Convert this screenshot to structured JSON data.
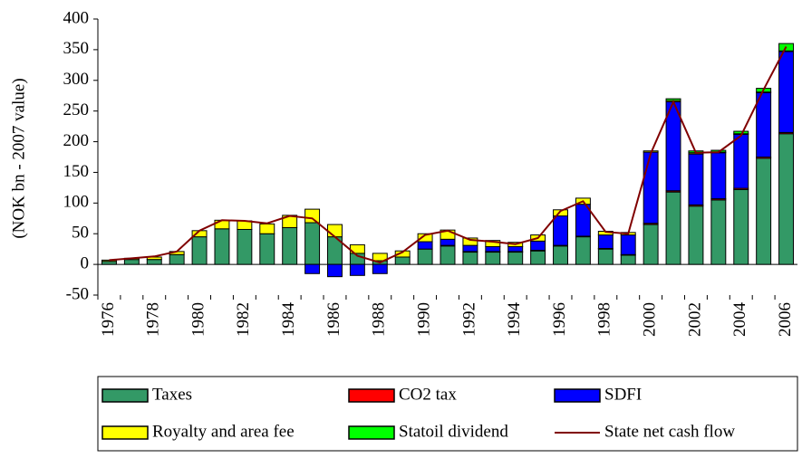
{
  "chart_data": {
    "type": "stacked_bar_line",
    "ylabel": "(NOK bn - 2007 value)",
    "categories": [
      "1976",
      null,
      "1978",
      null,
      "1980",
      null,
      "1982",
      null,
      "1984",
      null,
      "1986",
      null,
      "1988",
      null,
      "1990",
      null,
      "1992",
      null,
      "1994",
      null,
      "1996",
      null,
      "1998",
      null,
      "2000",
      null,
      "2002",
      null,
      "2004",
      null,
      "2006"
    ],
    "series": [
      {
        "name": "Taxes",
        "color": "#339966",
        "kind": "bar",
        "values": [
          5,
          8,
          8,
          16,
          45,
          58,
          57,
          50,
          60,
          68,
          45,
          18,
          6,
          12,
          25,
          30,
          20,
          20,
          20,
          22,
          30,
          45,
          25,
          15,
          65,
          118,
          95,
          105,
          122,
          173,
          213
        ]
      },
      {
        "name": "CO2 tax",
        "color": "#ff0000",
        "kind": "bar",
        "values": [
          0,
          0,
          0,
          0,
          0,
          0,
          0,
          0,
          0,
          0,
          0,
          0,
          0,
          0,
          0,
          1,
          1,
          1,
          1,
          1,
          1,
          1,
          1,
          1,
          2,
          2,
          2,
          2,
          2,
          2,
          2
        ]
      },
      {
        "name": "SDFI",
        "color": "#0000ff",
        "kind": "bar",
        "values": [
          0,
          0,
          0,
          0,
          0,
          0,
          0,
          0,
          0,
          -15,
          -20,
          -18,
          -15,
          0,
          12,
          10,
          10,
          8,
          8,
          15,
          48,
          52,
          22,
          32,
          116,
          145,
          83,
          75,
          88,
          105,
          132
        ]
      },
      {
        "name": "Royalty and area fee",
        "color": "#ffff00",
        "kind": "bar",
        "values": [
          2,
          2,
          4,
          5,
          10,
          14,
          14,
          16,
          20,
          22,
          20,
          14,
          12,
          10,
          13,
          15,
          12,
          10,
          7,
          10,
          10,
          10,
          6,
          4,
          2,
          2,
          2,
          1,
          1,
          1,
          1
        ]
      },
      {
        "name": "Statoil dividend",
        "color": "#00ff00",
        "kind": "bar",
        "values": [
          0,
          0,
          0,
          0,
          0,
          0,
          0,
          0,
          0,
          0,
          0,
          0,
          0,
          0,
          0,
          0,
          0,
          0,
          0,
          0,
          0,
          0,
          0,
          0,
          0,
          3,
          3,
          3,
          4,
          6,
          12
        ]
      },
      {
        "name": "State net cash flow",
        "color": "#800000",
        "kind": "line",
        "values": [
          7,
          10,
          13,
          21,
          55,
          72,
          71,
          67,
          79,
          75,
          45,
          14,
          3,
          20,
          48,
          55,
          40,
          37,
          33,
          43,
          87,
          103,
          53,
          50,
          181,
          265,
          182,
          183,
          210,
          285,
          355
        ]
      }
    ],
    "ylim": [
      -50,
      400
    ],
    "yticks": [
      -50,
      0,
      50,
      100,
      150,
      200,
      250,
      300,
      350,
      400
    ],
    "grid": false
  }
}
